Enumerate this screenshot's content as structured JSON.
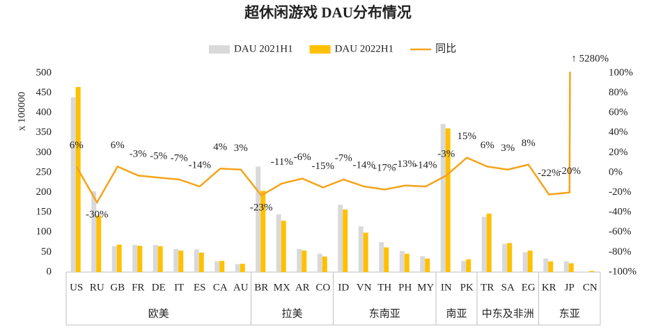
{
  "chart_data": {
    "type": "bar-line",
    "title": "超休闲游戏 DAU分布情况",
    "y_label": "x 100000",
    "groups": [
      {
        "name": "欧美",
        "categories": [
          "US",
          "RU",
          "GB",
          "FR",
          "DE",
          "IT",
          "ES",
          "CA",
          "AU"
        ]
      },
      {
        "name": "拉美",
        "categories": [
          "BR",
          "MX",
          "AR",
          "CO"
        ]
      },
      {
        "name": "东南亚",
        "categories": [
          "ID",
          "VN",
          "TH",
          "PH",
          "MY"
        ]
      },
      {
        "name": "南亚",
        "categories": [
          "IN",
          "PK"
        ]
      },
      {
        "name": "中东及非洲",
        "categories": [
          "TR",
          "SA",
          "EG"
        ]
      },
      {
        "name": "东亚",
        "categories": [
          "KR",
          "JP",
          "CN"
        ]
      }
    ],
    "series": [
      {
        "name": "DAU 2021H1",
        "type": "bar",
        "color": "#d9d9d9",
        "values": [
          439,
          203,
          65,
          68,
          68,
          58,
          57,
          27,
          20,
          265,
          145,
          58,
          46,
          169,
          115,
          75,
          53,
          40,
          372,
          28,
          139,
          71,
          50,
          34,
          27,
          0.05
        ]
      },
      {
        "name": "DAU 2022H1",
        "type": "bar",
        "color": "#ffc000",
        "values": [
          465,
          142,
          69,
          66,
          65,
          54,
          49,
          28,
          21,
          204,
          129,
          54,
          39,
          157,
          99,
          62,
          46,
          34,
          361,
          32,
          147,
          73,
          54,
          27,
          22,
          2.7
        ]
      },
      {
        "name": "同比",
        "type": "line",
        "axis": "y2",
        "color": "#f5a31a",
        "values": [
          6,
          -30,
          6,
          -3,
          -5,
          -7,
          -14,
          4,
          3,
          -23,
          -11,
          -6,
          -15,
          -7,
          -14,
          -17,
          -13,
          -14,
          -3,
          15,
          6,
          3,
          8,
          -22,
          -20,
          5280
        ],
        "value_labels": [
          "6%",
          "-30%",
          "6%",
          "-3%",
          "-5%",
          "-7%",
          "-14%",
          "4%",
          "3%",
          "-23%",
          "-11%",
          "-6%",
          "-15%",
          "-7%",
          "-14%",
          "-17%",
          "-13%",
          "-14%",
          "-3%",
          "15%",
          "6%",
          "3%",
          "8%",
          "-22%",
          "-20%",
          "↑ 5280%"
        ]
      }
    ],
    "ylim": [
      0,
      500
    ],
    "yticks": [
      0,
      50,
      100,
      150,
      200,
      250,
      300,
      350,
      400,
      450,
      500
    ],
    "y2lim": [
      -100,
      100
    ],
    "y2ticks": [
      {
        "value": -100,
        "label": "-100%"
      },
      {
        "value": -80,
        "label": "-80%"
      },
      {
        "value": -60,
        "label": "-60%"
      },
      {
        "value": -40,
        "label": "-40%"
      },
      {
        "value": -20,
        "label": "-20%"
      },
      {
        "value": 0,
        "label": "0%"
      },
      {
        "value": 20,
        "label": "20%"
      },
      {
        "value": 40,
        "label": "40%"
      },
      {
        "value": 60,
        "label": "60%"
      },
      {
        "value": 80,
        "label": "80%"
      },
      {
        "value": 100,
        "label": "100%"
      }
    ],
    "legend": "top"
  }
}
